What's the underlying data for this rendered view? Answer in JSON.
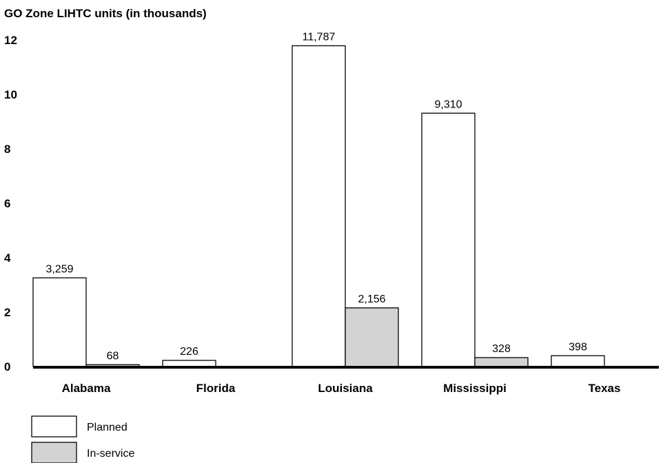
{
  "chart_data": {
    "type": "bar",
    "title": "GO Zone LIHTC units (in thousands)",
    "categories": [
      "Alabama",
      "Florida",
      "Louisiana",
      "Mississippi",
      "Texas"
    ],
    "series": [
      {
        "name": "Planned",
        "values": [
          3.259,
          0.226,
          11.787,
          9.31,
          0.398
        ],
        "labels": [
          "3,259",
          "226",
          "11,787",
          "9,310",
          "398"
        ],
        "color": "#ffffff"
      },
      {
        "name": "In-service",
        "values": [
          0.068,
          null,
          2.156,
          0.328,
          null
        ],
        "labels": [
          "68",
          "",
          "2,156",
          "328",
          ""
        ],
        "color": "#d3d3d3"
      }
    ],
    "yticks": [
      "0",
      "2",
      "4",
      "6",
      "8",
      "10",
      "12"
    ],
    "ylim": [
      0,
      12
    ],
    "grid": false,
    "legend": "bottom-left"
  }
}
